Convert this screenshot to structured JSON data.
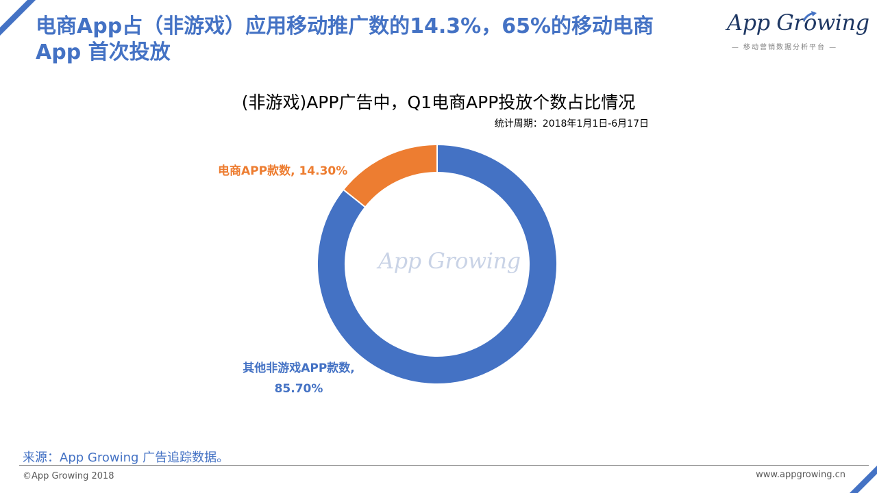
{
  "page": {
    "headline_line1": "电商App占（非游戏）应用移动推广数的14.3%，65%的移动电商",
    "headline_line2": "App 首次投放",
    "logo_text": "App Growing",
    "logo_tagline": "— 移动营销数据分析平台 —",
    "source": "来源：App Growing 广告追踪数据。",
    "copyright": "©App Growing 2018",
    "website": "www.appgrowing.cn"
  },
  "colors": {
    "accent": "#4472c4",
    "ecommerce": "#ed7d31",
    "other": "#4472c4"
  },
  "chart_data": {
    "type": "pie",
    "variant": "donut",
    "title": "(非游戏)APP广告中，Q1电商APP投放个数占比情况",
    "subtitle": "统计周期：2018年1月1日-6月17日",
    "watermark": "App Growing",
    "slices": [
      {
        "name": "电商APP款数",
        "value": 14.3,
        "label": "电商APP款数, 14.30%",
        "color": "#ed7d31"
      },
      {
        "name": "其他非游戏APP款数",
        "value": 85.7,
        "label_line1": "其他非游戏APP款数,",
        "label_line2": "85.70%",
        "color": "#4472c4"
      }
    ]
  }
}
